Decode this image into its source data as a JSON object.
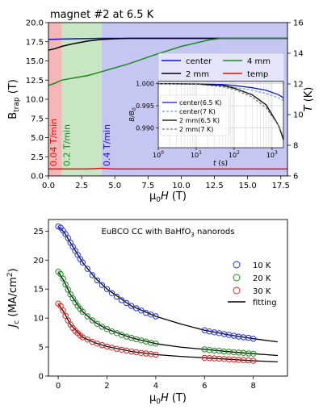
{
  "colors": {
    "band_red": "#f4b6b6",
    "band_green": "#c8e6c4",
    "band_blue": "#c6c6f2",
    "center": "#1010e0",
    "mm2": "#000000",
    "mm4": "#1a8a1a",
    "temp": "#e01010",
    "center7": "#6aa0ee",
    "mm2_7": "#777777",
    "k10": "#2030e0",
    "k20": "#1a8a1a",
    "k30": "#e02020"
  },
  "chart_data": [
    {
      "type": "line",
      "title": "magnet #2 at 6.5 K",
      "xlabel": "μ0H (T)",
      "ylabel": "Btrap (T)",
      "ylabel_right": "T (K)",
      "xlim": [
        0,
        18
      ],
      "ylim": [
        0,
        20
      ],
      "ylim_right": [
        6,
        16
      ],
      "x_ticks": [
        "0.0",
        "2.5",
        "5.0",
        "7.5",
        "10.0",
        "12.5",
        "15.0",
        "17.5"
      ],
      "y_ticks": [
        "0.0",
        "2.5",
        "5.0",
        "7.5",
        "10.0",
        "12.5",
        "15.0",
        "17.5",
        "20.0"
      ],
      "y_ticks_right": [
        "6",
        "8",
        "10",
        "12",
        "14",
        "16"
      ],
      "bands": [
        {
          "from": 0,
          "to": 1,
          "label": "0.04 T/min"
        },
        {
          "from": 1,
          "to": 4,
          "label": "0.2 T/min"
        },
        {
          "from": 4,
          "to": 18,
          "label": "0.4 T/min"
        }
      ],
      "legend": [
        "center",
        "2 mm",
        "4 mm",
        "temp"
      ],
      "series": [
        {
          "name": "center",
          "x": [
            0,
            1,
            2,
            4,
            6,
            10,
            14,
            18
          ],
          "values": [
            17.8,
            17.85,
            17.9,
            17.95,
            17.95,
            17.95,
            17.95,
            17.95
          ]
        },
        {
          "name": "2 mm",
          "x": [
            0,
            0.5,
            1,
            1.5,
            2,
            3,
            4,
            5,
            6,
            8,
            18
          ],
          "values": [
            16.4,
            16.6,
            16.9,
            17.1,
            17.3,
            17.6,
            17.8,
            17.9,
            17.95,
            17.95,
            17.95
          ]
        },
        {
          "name": "4 mm",
          "x": [
            0,
            0.5,
            1,
            2,
            3,
            4,
            6,
            8,
            10,
            12,
            13,
            14,
            18
          ],
          "values": [
            11.8,
            12.1,
            12.5,
            12.8,
            13.1,
            13.6,
            14.6,
            15.8,
            16.9,
            17.7,
            17.95,
            17.95,
            17.95
          ]
        },
        {
          "name": "temp",
          "x": [
            0,
            1,
            2,
            3,
            4,
            5,
            10,
            18
          ],
          "values_right": [
            6.45,
            6.45,
            6.45,
            6.45,
            6.5,
            6.45,
            6.45,
            6.45
          ]
        }
      ],
      "inset": {
        "xlabel": "t (s)",
        "ylabel": "B/B0",
        "xscale": "log",
        "xlim": [
          1,
          2000
        ],
        "ylim": [
          0.9855,
          1.0005
        ],
        "x_ticks": [
          "10^0",
          "10^1",
          "10^2",
          "10^3"
        ],
        "y_ticks": [
          "1.000",
          "0.995",
          "0.990"
        ],
        "legend": [
          "center(6.5 K)",
          "center(7 K)",
          "2 mm(6.5 K)",
          "2 mm(7 K)"
        ],
        "series": [
          {
            "name": "center(6.5 K)",
            "x": [
              1,
              10,
              50,
              100,
              300,
              700,
              1500,
              2000
            ],
            "values": [
              1.0,
              0.99995,
              0.9998,
              0.9996,
              0.9991,
              0.9985,
              0.9975,
              0.9968
            ]
          },
          {
            "name": "center(7 K)",
            "x": [
              1,
              10,
              50,
              100,
              300,
              700,
              1500,
              2000
            ],
            "values": [
              1.0,
              0.9999,
              0.9996,
              0.9992,
              0.9985,
              0.9978,
              0.9968,
              0.9962
            ]
          },
          {
            "name": "2 mm(6.5 K)",
            "x": [
              1,
              10,
              50,
              100,
              300,
              700,
              1500,
              2000
            ],
            "values": [
              1.0,
              0.99993,
              0.9996,
              0.999,
              0.9975,
              0.9952,
              0.9905,
              0.9873
            ]
          },
          {
            "name": "2 mm(7 K)",
            "x": [
              1,
              10,
              50,
              100,
              300,
              700,
              1500,
              2000
            ],
            "values": [
              1.0,
              0.9999,
              0.9993,
              0.9987,
              0.997,
              0.9945,
              0.9905,
              0.988
            ]
          }
        ]
      }
    },
    {
      "type": "scatter",
      "title": "EuBCO CC with BaHfO3 nanorods",
      "xlabel": "μ0H (T)",
      "ylabel": "Jc (MA/cm²)",
      "xlim": [
        -0.4,
        9.4
      ],
      "ylim": [
        0,
        27
      ],
      "x_ticks": [
        "0",
        "2",
        "4",
        "6",
        "8"
      ],
      "y_ticks": [
        "0",
        "5",
        "10",
        "15",
        "20",
        "25"
      ],
      "legend": [
        "10 K",
        "20 K",
        "30 K",
        "fitting"
      ],
      "series": [
        {
          "name": "10 K",
          "x": [
            0,
            0.1,
            0.2,
            0.3,
            0.4,
            0.5,
            0.6,
            0.7,
            0.8,
            0.9,
            1.0,
            1.2,
            1.4,
            1.6,
            1.8,
            2.0,
            2.2,
            2.4,
            2.6,
            2.8,
            3.0,
            3.2,
            3.4,
            3.6,
            3.8,
            4.0,
            6.0,
            6.2,
            6.4,
            6.6,
            6.8,
            7.0,
            7.2,
            7.4,
            7.6,
            7.8,
            8.0
          ],
          "values": [
            25.8,
            25.6,
            25.1,
            24.5,
            23.8,
            23.0,
            22.3,
            21.6,
            20.9,
            20.2,
            19.6,
            18.5,
            17.4,
            16.5,
            15.7,
            15.0,
            14.3,
            13.7,
            13.1,
            12.6,
            12.1,
            11.7,
            11.3,
            10.9,
            10.6,
            10.3,
            7.9,
            7.7,
            7.55,
            7.4,
            7.25,
            7.1,
            6.95,
            6.8,
            6.7,
            6.6,
            6.45
          ]
        },
        {
          "name": "20 K",
          "x": [
            0,
            0.1,
            0.2,
            0.3,
            0.4,
            0.5,
            0.6,
            0.7,
            0.8,
            0.9,
            1.0,
            1.2,
            1.4,
            1.6,
            1.8,
            2.0,
            2.2,
            2.4,
            2.6,
            2.8,
            3.0,
            3.2,
            3.4,
            3.6,
            3.8,
            4.0,
            6.0,
            6.2,
            6.4,
            6.6,
            6.8,
            7.0,
            7.2,
            7.4,
            7.6,
            7.8,
            8.0
          ],
          "values": [
            18.0,
            17.6,
            16.8,
            15.8,
            14.9,
            14.1,
            13.4,
            12.7,
            12.1,
            11.6,
            11.1,
            10.3,
            9.6,
            9.0,
            8.5,
            8.1,
            7.7,
            7.4,
            7.1,
            6.8,
            6.6,
            6.35,
            6.15,
            5.95,
            5.75,
            5.6,
            4.6,
            4.5,
            4.4,
            4.35,
            4.25,
            4.2,
            4.1,
            4.05,
            4.0,
            3.9,
            3.85
          ]
        },
        {
          "name": "30 K",
          "x": [
            0,
            0.1,
            0.2,
            0.3,
            0.4,
            0.5,
            0.6,
            0.7,
            0.8,
            0.9,
            1.0,
            1.2,
            1.4,
            1.6,
            1.8,
            2.0,
            2.2,
            2.4,
            2.6,
            2.8,
            3.0,
            3.2,
            3.4,
            3.6,
            3.8,
            4.0,
            6.0,
            6.2,
            6.4,
            6.6,
            6.8,
            7.0,
            7.2,
            7.4,
            7.6,
            7.8,
            8.0
          ],
          "values": [
            12.5,
            12.1,
            11.3,
            10.4,
            9.6,
            8.9,
            8.3,
            7.8,
            7.4,
            7.0,
            6.7,
            6.3,
            5.9,
            5.6,
            5.35,
            5.1,
            4.9,
            4.7,
            4.55,
            4.4,
            4.25,
            4.1,
            4.0,
            3.9,
            3.8,
            3.7,
            3.15,
            3.1,
            3.05,
            3.0,
            2.95,
            2.9,
            2.85,
            2.8,
            2.75,
            2.7,
            2.65
          ]
        },
        {
          "name": "fitting 10 K",
          "x": [
            0,
            0.25,
            0.5,
            1,
            1.5,
            2,
            3,
            4,
            5,
            6,
            7,
            8,
            9
          ],
          "values": [
            25.8,
            24.8,
            23.0,
            19.6,
            17.0,
            15.0,
            12.1,
            10.3,
            9.0,
            7.9,
            7.1,
            6.45,
            5.9
          ]
        },
        {
          "name": "fitting 20 K",
          "x": [
            0,
            0.25,
            0.5,
            1,
            1.5,
            2,
            3,
            4,
            5,
            6,
            7,
            8,
            9
          ],
          "values": [
            18.0,
            16.3,
            14.1,
            11.1,
            9.3,
            8.1,
            6.6,
            5.6,
            5.0,
            4.6,
            4.2,
            3.85,
            3.55
          ]
        },
        {
          "name": "fitting 30 K",
          "x": [
            0,
            0.25,
            0.5,
            1,
            1.5,
            2,
            3,
            4,
            5,
            6,
            7,
            8,
            9
          ],
          "values": [
            12.5,
            10.9,
            8.9,
            6.7,
            5.75,
            5.1,
            4.25,
            3.7,
            3.4,
            3.15,
            2.9,
            2.65,
            2.45
          ]
        }
      ]
    }
  ]
}
